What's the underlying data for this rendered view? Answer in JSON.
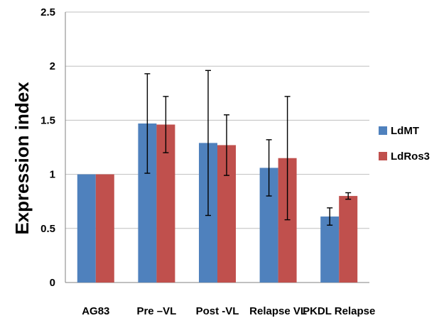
{
  "chart_data": {
    "type": "bar",
    "title": "",
    "xlabel": "",
    "ylabel": "Expression index",
    "ylim": [
      0,
      2.5
    ],
    "yticks": [
      "0",
      "0.5",
      "1",
      "1.5",
      "2",
      "2.5"
    ],
    "ytick_values": [
      0,
      0.5,
      1,
      1.5,
      2,
      2.5
    ],
    "grid": true,
    "legend_position": "right",
    "categories": [
      "AG83",
      "Pre –VL",
      "Post -VL",
      "Relapse VL",
      "PKDL Relapse"
    ],
    "series": [
      {
        "name": "LdMT",
        "color": "#4F81BD",
        "values": [
          1.0,
          1.47,
          1.29,
          1.06,
          0.61
        ],
        "error": [
          0,
          0.46,
          0.67,
          0.26,
          0.08
        ]
      },
      {
        "name": "LdRos3",
        "color": "#C0504D",
        "values": [
          1.0,
          1.46,
          1.27,
          1.15,
          0.8
        ],
        "error": [
          0,
          0.26,
          0.28,
          0.57,
          0.03
        ]
      }
    ]
  }
}
